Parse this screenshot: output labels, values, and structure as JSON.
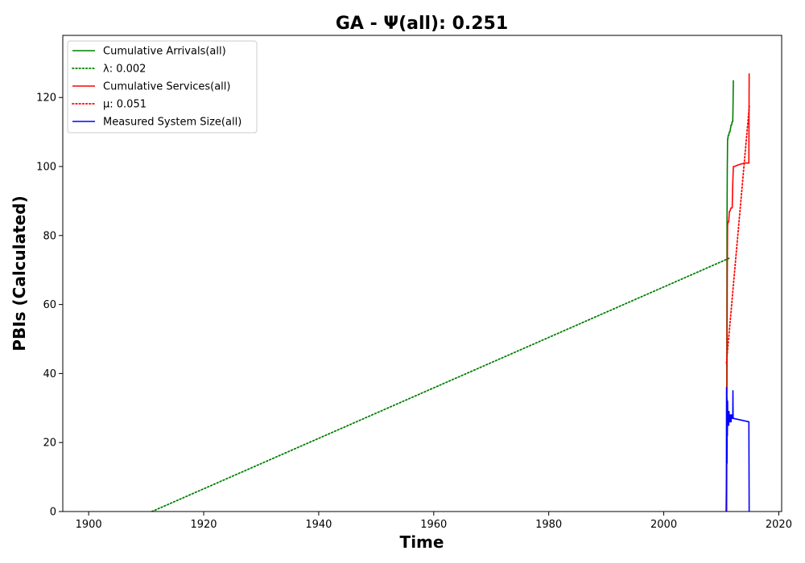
{
  "chart_data": {
    "type": "line",
    "title": "GA -  Ψ(all): 0.251",
    "xlabel": "Time",
    "ylabel": "PBIs (Calculated)",
    "xlim": [
      1895.5,
      2020.5
    ],
    "ylim": [
      0,
      138
    ],
    "xticks": [
      1900,
      1920,
      1940,
      1960,
      1980,
      2000,
      2020
    ],
    "yticks": [
      0,
      20,
      40,
      60,
      80,
      100,
      120
    ],
    "grid": false,
    "legend_position": "top-left",
    "series": [
      {
        "name": "Cumulative Arrivals(all)",
        "color": "#008000",
        "style": "solid",
        "x": [
          2010.9,
          2010.95,
          2011.0,
          2011.05,
          2011.1,
          2011.15,
          2011.2,
          2011.3,
          2011.4,
          2011.5,
          2011.6,
          2011.7,
          2011.8,
          2011.9,
          2012.0,
          2012.05,
          2012.1
        ],
        "y": [
          0,
          30,
          84,
          100,
          108,
          108,
          109,
          109,
          110,
          110,
          111,
          112,
          112,
          113,
          113,
          118,
          125
        ]
      },
      {
        "name": "λ: 0.002",
        "color": "#008000",
        "style": "dotted",
        "x": [
          1911,
          2011.5
        ],
        "y": [
          0,
          73.5
        ]
      },
      {
        "name": "Cumulative Services(all)",
        "color": "#ff0000",
        "style": "solid",
        "x": [
          2010.95,
          2011.0,
          2011.05,
          2011.1,
          2011.2,
          2011.3,
          2011.4,
          2011.5,
          2011.7,
          2011.9,
          2012.0,
          2012.1,
          2012.3,
          2013.0,
          2014.0,
          2014.5,
          2014.8,
          2014.85
        ],
        "y": [
          0,
          40,
          70,
          83,
          84,
          84,
          87,
          87,
          88,
          88,
          95,
          100,
          100,
          100.5,
          101,
          101,
          101,
          127
        ]
      },
      {
        "name": "μ: 0.051",
        "color": "#ff0000",
        "style": "dotted",
        "x": [
          2010.9,
          2014.9
        ],
        "y": [
          43,
          118
        ]
      },
      {
        "name": "Measured System Size(all)",
        "color": "#0000ff",
        "style": "solid",
        "x": [
          2010.85,
          2010.9,
          2010.92,
          2010.95,
          2010.97,
          2011.0,
          2011.03,
          2011.06,
          2011.1,
          2011.13,
          2011.16,
          2011.2,
          2011.25,
          2011.3,
          2011.35,
          2011.4,
          2011.45,
          2011.5,
          2011.55,
          2011.6,
          2011.65,
          2011.7,
          2011.75,
          2011.8,
          2011.85,
          2011.9,
          2011.95,
          2012.0,
          2012.03,
          2012.06,
          2012.1,
          2014.8,
          2014.85
        ],
        "y": [
          0,
          10,
          36,
          20,
          33,
          14,
          28,
          22,
          32,
          25,
          29,
          26,
          27,
          25,
          29,
          26,
          28,
          27,
          26,
          28,
          27,
          26,
          28,
          27,
          27,
          28,
          27,
          27,
          35,
          27,
          27,
          26,
          0
        ]
      }
    ]
  }
}
